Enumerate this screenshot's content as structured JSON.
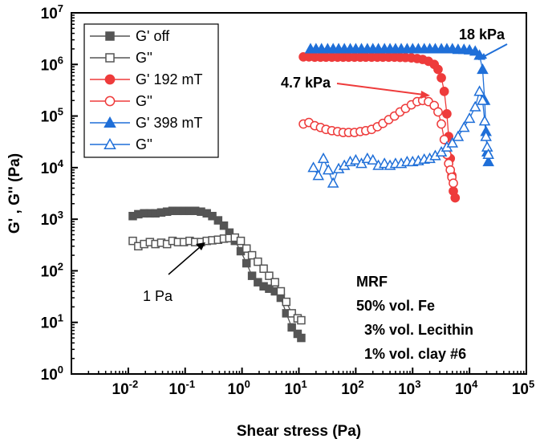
{
  "chart_data": {
    "type": "scatter",
    "x_scale": "log",
    "y_scale": "log",
    "xlim": [
      0.001,
      100000
    ],
    "ylim": [
      1,
      10000000
    ],
    "xlabel": "Shear stress (Pa)",
    "ylabel": "G' , G'' (Pa)",
    "x_ticks": [
      {
        "base": "10",
        "exp": "-2",
        "value": 0.01
      },
      {
        "base": "10",
        "exp": "-1",
        "value": 0.1
      },
      {
        "base": "10",
        "exp": "0",
        "value": 1
      },
      {
        "base": "10",
        "exp": "1",
        "value": 10
      },
      {
        "base": "10",
        "exp": "2",
        "value": 100
      },
      {
        "base": "10",
        "exp": "3",
        "value": 1000
      },
      {
        "base": "10",
        "exp": "4",
        "value": 10000
      },
      {
        "base": "10",
        "exp": "5",
        "value": 100000
      }
    ],
    "y_ticks": [
      {
        "base": "10",
        "exp": "0",
        "value": 1
      },
      {
        "base": "10",
        "exp": "1",
        "value": 10
      },
      {
        "base": "10",
        "exp": "2",
        "value": 100
      },
      {
        "base": "10",
        "exp": "3",
        "value": 1000
      },
      {
        "base": "10",
        "exp": "4",
        "value": 10000
      },
      {
        "base": "10",
        "exp": "5",
        "value": 100000
      },
      {
        "base": "10",
        "exp": "6",
        "value": 1000000
      },
      {
        "base": "10",
        "exp": "7",
        "value": 10000000
      }
    ],
    "legend_position": "top-left",
    "series": [
      {
        "name": "G' off",
        "color": "#555555",
        "marker": "square",
        "filled": true,
        "x": [
          0.012,
          0.015,
          0.019,
          0.024,
          0.03,
          0.038,
          0.048,
          0.06,
          0.075,
          0.095,
          0.12,
          0.15,
          0.19,
          0.24,
          0.3,
          0.38,
          0.48,
          0.6,
          0.75,
          0.95,
          1.2,
          1.5,
          1.9,
          2.4,
          3.0,
          3.8,
          4.8,
          6.0,
          7.5,
          9.5,
          11
        ],
        "y": [
          1150,
          1250,
          1300,
          1300,
          1300,
          1350,
          1400,
          1450,
          1450,
          1450,
          1450,
          1450,
          1400,
          1300,
          1150,
          950,
          750,
          550,
          380,
          240,
          140,
          80,
          60,
          50,
          45,
          40,
          30,
          15,
          8,
          6,
          5
        ]
      },
      {
        "name": "G''",
        "color": "#555555",
        "marker": "square",
        "filled": false,
        "x": [
          0.012,
          0.015,
          0.019,
          0.024,
          0.03,
          0.038,
          0.048,
          0.06,
          0.075,
          0.095,
          0.12,
          0.15,
          0.19,
          0.24,
          0.3,
          0.38,
          0.48,
          0.6,
          0.75,
          0.95,
          1.2,
          1.5,
          1.9,
          2.4,
          3.0,
          3.8,
          4.8,
          6.0,
          7.5,
          9.5,
          11
        ],
        "y": [
          380,
          300,
          330,
          360,
          330,
          350,
          330,
          380,
          360,
          360,
          380,
          360,
          360,
          380,
          390,
          400,
          420,
          430,
          440,
          380,
          270,
          200,
          150,
          110,
          80,
          60,
          40,
          25,
          15,
          12,
          11
        ]
      },
      {
        "name": "G' 192 mT",
        "color": "#ee3b3b",
        "marker": "circle",
        "filled": true,
        "x": [
          12,
          15,
          19,
          24,
          30,
          38,
          48,
          60,
          75,
          95,
          120,
          150,
          190,
          240,
          300,
          380,
          480,
          600,
          750,
          950,
          1200,
          1500,
          1900,
          2400,
          2800,
          3200,
          3600,
          4000,
          4300,
          4600,
          4900,
          5200,
          5600
        ],
        "y": [
          1400000,
          1400000,
          1380000,
          1380000,
          1380000,
          1380000,
          1380000,
          1380000,
          1380000,
          1380000,
          1380000,
          1380000,
          1380000,
          1380000,
          1380000,
          1380000,
          1380000,
          1370000,
          1360000,
          1340000,
          1300000,
          1250000,
          1150000,
          1000000,
          800000,
          550000,
          300000,
          110000,
          40000,
          15000,
          7000,
          3500,
          2600
        ]
      },
      {
        "name": "G''",
        "color": "#ee3b3b",
        "marker": "circle",
        "filled": false,
        "x": [
          12,
          15,
          19,
          24,
          30,
          38,
          48,
          60,
          75,
          95,
          120,
          150,
          190,
          240,
          300,
          380,
          480,
          600,
          750,
          950,
          1200,
          1500,
          1900,
          2400,
          2800,
          3200,
          3600,
          4000,
          4300,
          4600,
          4900,
          5200
        ],
        "y": [
          70000,
          75000,
          65000,
          60000,
          55000,
          52000,
          50000,
          48000,
          48000,
          48000,
          50000,
          52000,
          55000,
          62000,
          72000,
          85000,
          100000,
          120000,
          140000,
          165000,
          190000,
          200000,
          190000,
          160000,
          120000,
          70000,
          35000,
          18000,
          12000,
          9000,
          6500,
          5000
        ]
      },
      {
        "name": "G' 398 mT",
        "color": "#1f6fd8",
        "marker": "triangle",
        "filled": true,
        "x": [
          16,
          20,
          25,
          32,
          40,
          50,
          63,
          80,
          100,
          126,
          160,
          200,
          250,
          320,
          400,
          500,
          630,
          800,
          1000,
          1260,
          1600,
          2000,
          2500,
          3200,
          4000,
          5000,
          6300,
          8000,
          10000,
          12600,
          15000,
          17000,
          18500,
          19500,
          20500,
          21500
        ],
        "y": [
          2000000,
          2000000,
          2000000,
          2000000,
          2000000,
          2000000,
          2000000,
          2000000,
          2000000,
          2000000,
          2000000,
          2000000,
          2000000,
          2000000,
          2000000,
          2000000,
          2000000,
          2000000,
          2000000,
          2000000,
          2000000,
          2000000,
          2000000,
          2000000,
          2000000,
          2000000,
          1950000,
          1950000,
          1900000,
          1800000,
          1500000,
          800000,
          200000,
          50000,
          20000,
          13000
        ]
      },
      {
        "name": "G''",
        "color": "#1f6fd8",
        "marker": "triangle",
        "filled": false,
        "x": [
          18,
          22,
          27,
          33,
          40,
          50,
          63,
          80,
          100,
          126,
          160,
          200,
          250,
          320,
          400,
          500,
          630,
          800,
          1000,
          1260,
          1600,
          2000,
          2500,
          3200,
          4000,
          5000,
          6300,
          8000,
          10000,
          12600,
          15000,
          17000,
          18500,
          19500,
          20500,
          21500
        ],
        "y": [
          10000,
          7000,
          15000,
          9000,
          5000,
          9500,
          11000,
          13000,
          14000,
          12000,
          15000,
          14000,
          11000,
          12000,
          11000,
          12000,
          12000,
          13000,
          13000,
          13500,
          14500,
          15000,
          17000,
          20000,
          25000,
          30000,
          40000,
          60000,
          90000,
          150000,
          300000,
          200000,
          80000,
          40000,
          25000,
          18000
        ]
      }
    ],
    "annotations": [
      {
        "text": "18 kPa",
        "color": "#1f6fd8",
        "bold": true
      },
      {
        "text": "4.7 kPa",
        "color": "#ee3b3b",
        "bold": true
      },
      {
        "text": "1 Pa",
        "color": "#000000",
        "bold": false
      }
    ],
    "info_text": [
      "MRF",
      "50% vol. Fe",
      "  3% vol. Lecithin",
      "  1% vol. clay #6"
    ]
  }
}
